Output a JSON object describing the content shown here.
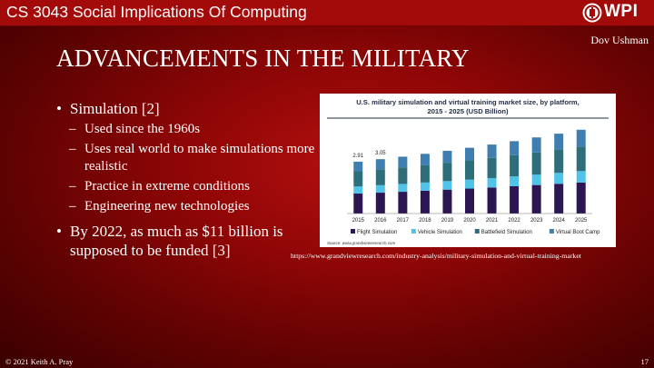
{
  "header": {
    "course_title": "CS 3043 Social Implications Of Computing",
    "logo_text": "WPI",
    "logo_icon": "wpi-seal-icon"
  },
  "slide": {
    "author": "Dov Ushman",
    "title": "ADVANCEMENTS IN THE MILITARY",
    "bullets": [
      {
        "text": "Simulation [2]",
        "sub": [
          "Used since the 1960s",
          "Uses real world to make simulations more realistic",
          "Practice in extreme conditions",
          "Engineering new technologies"
        ]
      },
      {
        "text": "By 2022, as much as $11 billion is supposed to be funded [3]",
        "sub": []
      }
    ],
    "source_url": "https://www.grandviewresearch.com/industry-analysis/military-simulation-and-virtual-training-market"
  },
  "footer": {
    "copyright": "© 2021 Keith A. Pray",
    "page_number": "17"
  },
  "chart_data": {
    "type": "bar",
    "stacked": true,
    "title": "U.S. military simulation and virtual training market size, by platform, 2015 - 2025 (USD Billion)",
    "categories": [
      "2015",
      "2016",
      "2017",
      "2018",
      "2019",
      "2020",
      "2021",
      "2022",
      "2023",
      "2024",
      "2025"
    ],
    "series": [
      {
        "name": "Flight Simulation",
        "color": "#2b1652",
        "values": [
          1.12,
          1.17,
          1.22,
          1.28,
          1.34,
          1.4,
          1.46,
          1.53,
          1.6,
          1.67,
          1.74
        ]
      },
      {
        "name": "Vehicle Simulation",
        "color": "#4fc3e8",
        "values": [
          0.4,
          0.42,
          0.44,
          0.46,
          0.48,
          0.5,
          0.53,
          0.55,
          0.58,
          0.61,
          0.64
        ]
      },
      {
        "name": "Battlefield Simulation",
        "color": "#2e6e7a",
        "values": [
          0.85,
          0.89,
          0.93,
          0.98,
          1.03,
          1.08,
          1.13,
          1.19,
          1.25,
          1.31,
          1.38
        ]
      },
      {
        "name": "Virtual Boot Camp",
        "color": "#3f7fb0",
        "values": [
          0.54,
          0.57,
          0.6,
          0.63,
          0.67,
          0.71,
          0.75,
          0.79,
          0.84,
          0.89,
          0.94
        ]
      }
    ],
    "data_labels": [
      {
        "category": "2015",
        "text": "2.91"
      },
      {
        "category": "2016",
        "text": "3.05"
      }
    ],
    "ylim": [
      0,
      5.2
    ],
    "legend_position": "bottom",
    "source_note": "Source: www.grandviewresearch.com"
  }
}
